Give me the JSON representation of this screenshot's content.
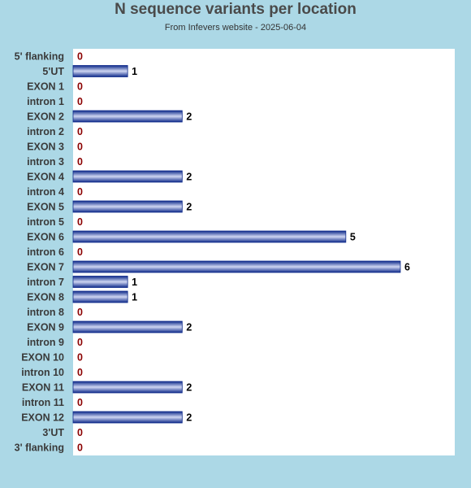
{
  "header": {
    "title": "N sequence variants per location",
    "subtitle": "From Infevers website - 2025-06-04"
  },
  "colors": {
    "background": "#acd8e6",
    "plot_background": "#ffffff",
    "bar_dark": "#0e2a8a",
    "bar_light": "#cfd6f2",
    "value_label": "#000000",
    "zero_label": "#8b0000"
  },
  "chart_data": {
    "type": "bar",
    "orientation": "horizontal",
    "title": "N sequence variants per location",
    "subtitle": "From Infevers website - 2025-06-04",
    "xlabel": "",
    "ylabel": "",
    "xlim": [
      0,
      6
    ],
    "grid": false,
    "legend": "none",
    "categories": [
      "5' flanking",
      "5'UT",
      "EXON 1",
      "intron 1",
      "EXON 2",
      "intron 2",
      "EXON 3",
      "intron 3",
      "EXON 4",
      "intron 4",
      "EXON 5",
      "intron 5",
      "EXON 6",
      "intron 6",
      "EXON 7",
      "intron 7",
      "EXON 8",
      "intron 8",
      "EXON 9",
      "intron 9",
      "EXON 10",
      "intron 10",
      "EXON 11",
      "intron 11",
      "EXON 12",
      "3'UT",
      "3' flanking"
    ],
    "values": [
      0,
      1,
      0,
      0,
      2,
      0,
      0,
      0,
      2,
      0,
      2,
      0,
      5,
      0,
      6,
      1,
      1,
      0,
      2,
      0,
      0,
      0,
      2,
      0,
      2,
      0,
      0
    ]
  }
}
